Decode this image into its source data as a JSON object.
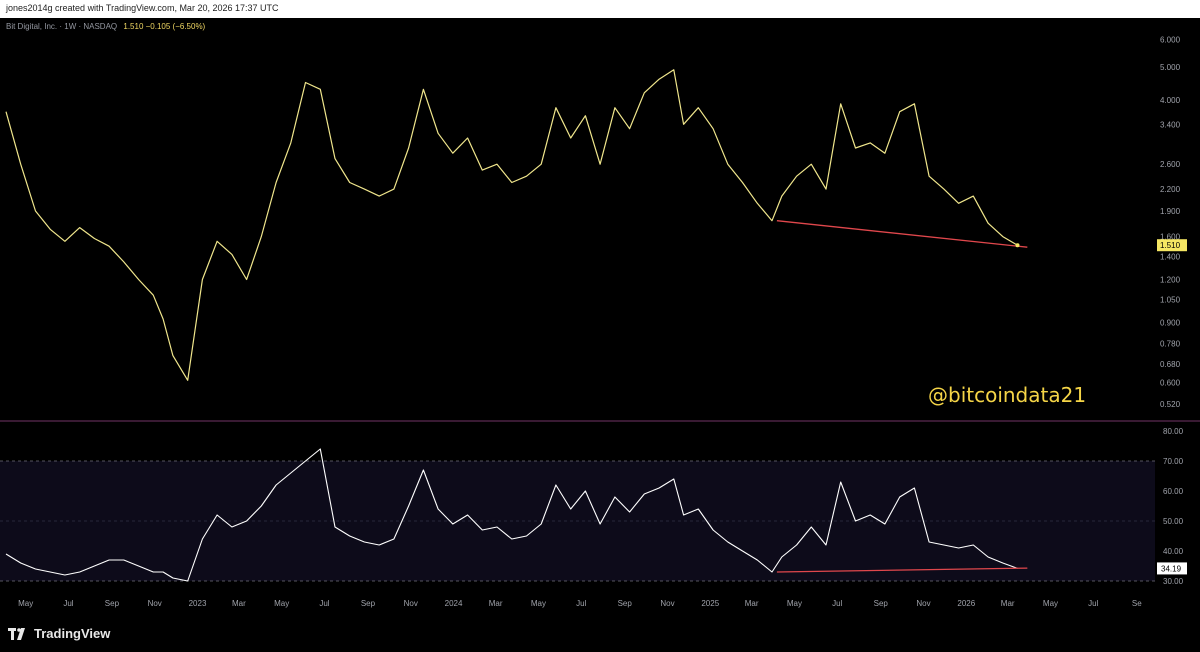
{
  "header": {
    "credit": "jones2014g created with TradingView.com, Mar 20, 2026 17:37 UTC",
    "symbol": "Bit Digital, Inc. · 1W · NASDAQ",
    "ohlc": "1.510 −0.105 (−6.50%)"
  },
  "watermark": "@bitcoindata21",
  "footer": {
    "logo_text": "TradingView"
  },
  "colors": {
    "price_line": "#f0e68c",
    "rsi_line": "#ffffff",
    "trendline": "#e0474c",
    "price_badge": "#f5e663",
    "rsi_band": "#0d0b1a",
    "separator": "#5b2a52"
  },
  "chart_data": [
    {
      "type": "line",
      "title": "Bit Digital, Inc. · 1W · NASDAQ",
      "scale": "log",
      "ylim": [
        0.48,
        6.4
      ],
      "yticks": [
        "6.000",
        "5.000",
        "4.000",
        "3.400",
        "2.600",
        "2.200",
        "1.900",
        "1.600",
        "1.400",
        "1.200",
        "1.050",
        "0.900",
        "0.780",
        "0.680",
        "0.600",
        "0.520"
      ],
      "last_value": "1.510",
      "x_start": "2022-04-03",
      "x_end": "2026-09-27",
      "series": [
        {
          "x": [
            "2022-04-03",
            "2022-04-24",
            "2022-05-15",
            "2022-06-05",
            "2022-06-26",
            "2022-07-17",
            "2022-08-07",
            "2022-08-28",
            "2022-09-18",
            "2022-10-09",
            "2022-10-30",
            "2022-11-13",
            "2022-11-27",
            "2022-12-18",
            "2023-01-08",
            "2023-01-29",
            "2023-02-19",
            "2023-03-12",
            "2023-04-02",
            "2023-04-23",
            "2023-05-14",
            "2023-06-04",
            "2023-06-25",
            "2023-07-16",
            "2023-08-06",
            "2023-08-27",
            "2023-09-17",
            "2023-10-08",
            "2023-10-29",
            "2023-11-19",
            "2023-12-10",
            "2023-12-31",
            "2024-01-21",
            "2024-02-11",
            "2024-03-03",
            "2024-03-24",
            "2024-04-14",
            "2024-05-05",
            "2024-05-26",
            "2024-06-16",
            "2024-07-07",
            "2024-07-28",
            "2024-08-18",
            "2024-09-08",
            "2024-09-29",
            "2024-10-20",
            "2024-11-10",
            "2024-11-24",
            "2024-12-15",
            "2025-01-05",
            "2025-01-26",
            "2025-02-16",
            "2025-03-09",
            "2025-03-30",
            "2025-04-13",
            "2025-05-04",
            "2025-05-25",
            "2025-06-15",
            "2025-07-06",
            "2025-07-27",
            "2025-08-17",
            "2025-09-07",
            "2025-09-28",
            "2025-10-19",
            "2025-11-09",
            "2025-11-30",
            "2025-12-21",
            "2026-01-11",
            "2026-02-01",
            "2026-02-22",
            "2026-03-15"
          ],
          "y": [
            3.7,
            2.6,
            1.9,
            1.68,
            1.55,
            1.7,
            1.58,
            1.5,
            1.35,
            1.2,
            1.08,
            0.92,
            0.72,
            0.61,
            1.2,
            1.55,
            1.42,
            1.2,
            1.6,
            2.3,
            3.0,
            4.5,
            4.3,
            2.7,
            2.3,
            2.2,
            2.1,
            2.2,
            2.9,
            4.3,
            3.2,
            2.8,
            3.1,
            2.5,
            2.6,
            2.3,
            2.4,
            2.6,
            3.8,
            3.1,
            3.6,
            2.6,
            3.8,
            3.3,
            4.2,
            4.6,
            4.9,
            3.4,
            3.8,
            3.3,
            2.6,
            2.3,
            2.0,
            1.78,
            2.1,
            2.4,
            2.6,
            2.2,
            3.9,
            2.9,
            3.0,
            2.8,
            3.7,
            3.9,
            2.4,
            2.2,
            2.0,
            2.1,
            1.75,
            1.6,
            1.51
          ]
        }
      ]
    },
    {
      "type": "line",
      "title": "",
      "ylim": [
        27,
        82
      ],
      "yticks": [
        "80.00",
        "70.00",
        "60.00",
        "50.00",
        "40.00",
        "30.00"
      ],
      "band": [
        30,
        70
      ],
      "last_value": "34.19",
      "series": [
        {
          "x": [
            "2022-04-03",
            "2022-04-24",
            "2022-05-15",
            "2022-06-05",
            "2022-06-26",
            "2022-07-17",
            "2022-08-07",
            "2022-08-28",
            "2022-09-18",
            "2022-10-09",
            "2022-10-30",
            "2022-11-13",
            "2022-11-27",
            "2022-12-18",
            "2023-01-08",
            "2023-01-29",
            "2023-02-19",
            "2023-03-12",
            "2023-04-02",
            "2023-04-23",
            "2023-05-14",
            "2023-06-04",
            "2023-06-25",
            "2023-07-16",
            "2023-08-06",
            "2023-08-27",
            "2023-09-17",
            "2023-10-08",
            "2023-10-29",
            "2023-11-19",
            "2023-12-10",
            "2023-12-31",
            "2024-01-21",
            "2024-02-11",
            "2024-03-03",
            "2024-03-24",
            "2024-04-14",
            "2024-05-05",
            "2024-05-26",
            "2024-06-16",
            "2024-07-07",
            "2024-07-28",
            "2024-08-18",
            "2024-09-08",
            "2024-09-29",
            "2024-10-20",
            "2024-11-10",
            "2024-11-24",
            "2024-12-15",
            "2025-01-05",
            "2025-01-26",
            "2025-02-16",
            "2025-03-09",
            "2025-03-30",
            "2025-04-13",
            "2025-05-04",
            "2025-05-25",
            "2025-06-15",
            "2025-07-06",
            "2025-07-27",
            "2025-08-17",
            "2025-09-07",
            "2025-09-28",
            "2025-10-19",
            "2025-11-09",
            "2025-11-30",
            "2025-12-21",
            "2026-01-11",
            "2026-02-01",
            "2026-02-22",
            "2026-03-15"
          ],
          "y": [
            39,
            36,
            34,
            33,
            32,
            33,
            35,
            37,
            37,
            35,
            33,
            33,
            31,
            30,
            44,
            52,
            48,
            50,
            55,
            62,
            66,
            70,
            74,
            48,
            45,
            43,
            42,
            44,
            55,
            67,
            54,
            49,
            52,
            47,
            48,
            44,
            45,
            49,
            62,
            54,
            60,
            49,
            58,
            53,
            59,
            61,
            64,
            52,
            54,
            47,
            43,
            40,
            37,
            33,
            38,
            42,
            48,
            42,
            63,
            50,
            52,
            49,
            58,
            61,
            43,
            42,
            41,
            42,
            38,
            36,
            34.19
          ]
        }
      ]
    }
  ],
  "x_axis": {
    "labels": [
      {
        "t": "May",
        "d": "2022-05-01"
      },
      {
        "t": "Jul",
        "d": "2022-07-01"
      },
      {
        "t": "Sep",
        "d": "2022-09-01"
      },
      {
        "t": "Nov",
        "d": "2022-11-01"
      },
      {
        "t": "2023",
        "d": "2023-01-01"
      },
      {
        "t": "Mar",
        "d": "2023-03-01"
      },
      {
        "t": "May",
        "d": "2023-05-01"
      },
      {
        "t": "Jul",
        "d": "2023-07-01"
      },
      {
        "t": "Sep",
        "d": "2023-09-01"
      },
      {
        "t": "Nov",
        "d": "2023-11-01"
      },
      {
        "t": "2024",
        "d": "2024-01-01"
      },
      {
        "t": "Mar",
        "d": "2024-03-01"
      },
      {
        "t": "May",
        "d": "2024-05-01"
      },
      {
        "t": "Jul",
        "d": "2024-07-01"
      },
      {
        "t": "Sep",
        "d": "2024-09-01"
      },
      {
        "t": "Nov",
        "d": "2024-11-01"
      },
      {
        "t": "2025",
        "d": "2025-01-01"
      },
      {
        "t": "Mar",
        "d": "2025-03-01"
      },
      {
        "t": "May",
        "d": "2025-05-01"
      },
      {
        "t": "Jul",
        "d": "2025-07-01"
      },
      {
        "t": "Sep",
        "d": "2025-09-01"
      },
      {
        "t": "Nov",
        "d": "2025-11-01"
      },
      {
        "t": "2026",
        "d": "2026-01-01"
      },
      {
        "t": "Mar",
        "d": "2026-03-01"
      },
      {
        "t": "May",
        "d": "2026-05-01"
      },
      {
        "t": "Jul",
        "d": "2026-07-01"
      },
      {
        "t": "Se",
        "d": "2026-09-01"
      }
    ]
  },
  "trendlines": [
    {
      "panel": "price",
      "from": {
        "x": "2025-04-06",
        "y": 1.78
      },
      "to": {
        "x": "2026-03-29",
        "y": 1.49
      }
    },
    {
      "panel": "rsi",
      "from": {
        "x": "2025-04-06",
        "y": 33
      },
      "to": {
        "x": "2026-03-29",
        "y": 34.3
      }
    }
  ]
}
